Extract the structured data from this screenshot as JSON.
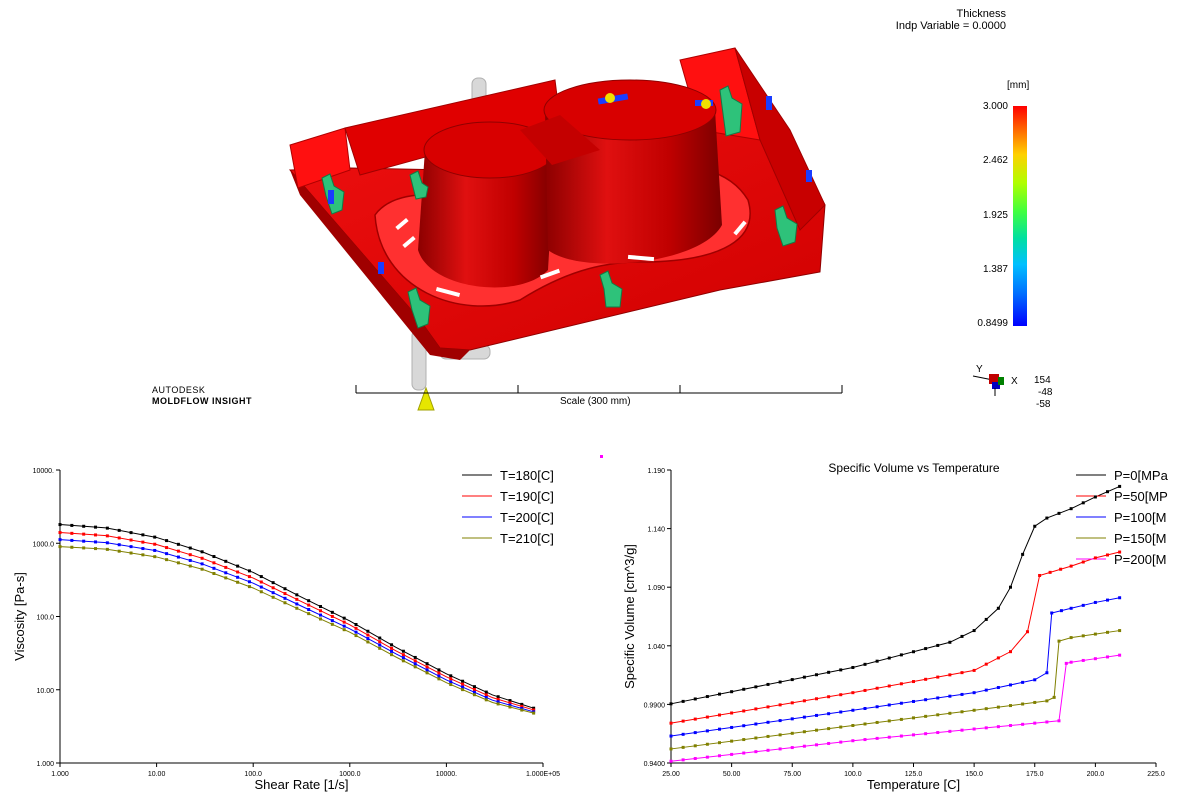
{
  "model_view": {
    "result_name": "Thickness",
    "indp_variable": "Indp Variable =  0.0000",
    "unit": "[mm]",
    "scale_ticks": [
      "3.000",
      "2.462",
      "1.925",
      "1.387",
      "0.8499"
    ],
    "scale_label": "Scale (300 mm)",
    "brand_line1": "AUTODESK",
    "brand_line2": "MOLDFLOW  INSIGHT",
    "axis_triad": {
      "y": "Y",
      "x": "X",
      "values": [
        "154",
        "-48",
        "-58"
      ]
    },
    "colors": {
      "part": "#dd0000",
      "inserts": "#2ec27a",
      "scale_top": "#ff0000",
      "scale_bottom": "#0000ff"
    }
  },
  "chart_data": [
    {
      "type": "line",
      "title": "",
      "xlabel": "Shear Rate [1/s]",
      "ylabel": "Viscosity [Pa-s]",
      "x_scale": "log",
      "y_scale": "log",
      "xlim": [
        1,
        100000
      ],
      "ylim": [
        1,
        10000
      ],
      "x_tick_labels": [
        "1.000",
        "10.00",
        "100.0",
        "1000.0",
        "10000.",
        "1.000E+05"
      ],
      "y_tick_labels": [
        "1.000",
        "10.00",
        "100.0",
        "1000.0",
        "10000."
      ],
      "legend_position": "top-right",
      "series": [
        {
          "name": "T=180[C]",
          "color": "#000000",
          "x": [
            1,
            3,
            10,
            30,
            100,
            300,
            1000,
            3000,
            10000,
            30000,
            80000
          ],
          "y": [
            1800,
            1620,
            1200,
            760,
            400,
            190,
            87,
            38,
            16.5,
            8.5,
            5.6
          ]
        },
        {
          "name": "T=190[C]",
          "color": "#ff0000",
          "x": [
            1,
            3,
            10,
            30,
            100,
            300,
            1000,
            3000,
            10000,
            30000,
            80000
          ],
          "y": [
            1400,
            1270,
            960,
            620,
            335,
            165,
            77,
            34,
            15,
            7.8,
            5.3
          ]
        },
        {
          "name": "T=200[C]",
          "color": "#0000ff",
          "x": [
            1,
            3,
            10,
            30,
            100,
            300,
            1000,
            3000,
            10000,
            30000,
            80000
          ],
          "y": [
            1120,
            1020,
            790,
            520,
            285,
            143,
            68,
            31,
            13.6,
            7.2,
            5.0
          ]
        },
        {
          "name": "T=210[C]",
          "color": "#808000",
          "x": [
            1,
            3,
            10,
            30,
            100,
            300,
            1000,
            3000,
            10000,
            30000,
            80000
          ],
          "y": [
            900,
            830,
            650,
            440,
            245,
            125,
            61,
            28,
            12.5,
            6.7,
            4.8
          ]
        }
      ]
    },
    {
      "type": "line",
      "title": "Specific Volume vs Temperature",
      "xlabel": "Temperature [C]",
      "ylabel": "Specific Volume [cm^3/g]",
      "xlim": [
        25,
        225
      ],
      "ylim": [
        0.94,
        1.19
      ],
      "x_tick_labels": [
        "25.00",
        "50.00",
        "75.00",
        "100.0",
        "125.0",
        "150.0",
        "175.0",
        "200.0",
        "225.0"
      ],
      "y_tick_labels": [
        "0.9400",
        "0.9900",
        "1.040",
        "1.090",
        "1.140",
        "1.190"
      ],
      "legend_position": "top-right",
      "series": [
        {
          "name": "P=0[MPa",
          "color": "#000000",
          "x": [
            25,
            100,
            140,
            150,
            160,
            165,
            170,
            175,
            180,
            190,
            200,
            210
          ],
          "y": [
            0.9905,
            1.0215,
            1.043,
            1.053,
            1.072,
            1.09,
            1.118,
            1.142,
            1.149,
            1.157,
            1.167,
            1.176
          ]
        },
        {
          "name": "P=50[MP",
          "color": "#ff0000",
          "x": [
            25,
            100,
            150,
            165,
            172,
            177,
            190,
            200,
            210
          ],
          "y": [
            0.974,
            1.0,
            1.019,
            1.035,
            1.052,
            1.1,
            1.108,
            1.115,
            1.12
          ]
        },
        {
          "name": "P=100[M",
          "color": "#0000ff",
          "x": [
            25,
            100,
            150,
            175,
            180,
            182,
            190,
            200,
            210
          ],
          "y": [
            0.963,
            0.985,
            1.0,
            1.011,
            1.017,
            1.068,
            1.072,
            1.077,
            1.081
          ]
        },
        {
          "name": "P=150[M",
          "color": "#808000",
          "x": [
            25,
            100,
            150,
            180,
            183,
            185,
            190,
            200,
            210
          ],
          "y": [
            0.952,
            0.972,
            0.985,
            0.993,
            0.996,
            1.044,
            1.047,
            1.05,
            1.053
          ]
        },
        {
          "name": "P=200[M",
          "color": "#ff00ff",
          "x": [
            25,
            100,
            150,
            185,
            188,
            190,
            200,
            210
          ],
          "y": [
            0.9415,
            0.959,
            0.969,
            0.976,
            1.025,
            1.026,
            1.029,
            1.032
          ]
        }
      ]
    }
  ]
}
